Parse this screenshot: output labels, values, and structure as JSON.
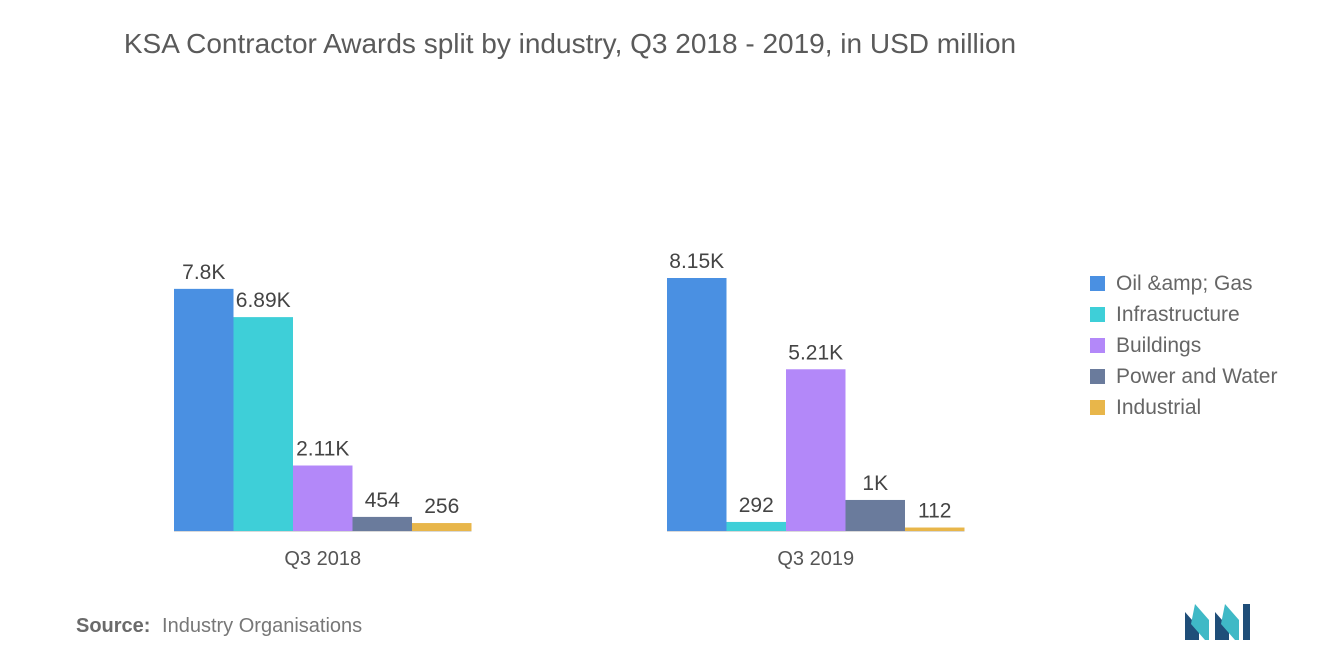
{
  "chart_data": {
    "type": "bar",
    "title": "KSA Contractor Awards split by industry, Q3 2018 - 2019, in USD million",
    "xlabel": "",
    "ylabel": "",
    "ylim": [
      0,
      8150
    ],
    "grid": false,
    "legend_position": "right",
    "categories": [
      "Q3 2018",
      "Q3 2019"
    ],
    "series": [
      {
        "name": "Oil &amp; Gas",
        "values": [
          7800,
          8150
        ],
        "labels": [
          "7.8K",
          "8.15K"
        ],
        "color": "#4a90e2"
      },
      {
        "name": "Infrastructure",
        "values": [
          6890,
          292
        ],
        "labels": [
          "6.89K",
          "292"
        ],
        "color": "#3ecfd8"
      },
      {
        "name": "Buildings",
        "values": [
          2110,
          5210
        ],
        "labels": [
          "2.11K",
          "5.21K"
        ],
        "color": "#b388f9"
      },
      {
        "name": "Power and Water",
        "values": [
          454,
          1000
        ],
        "labels": [
          "454",
          "1K"
        ],
        "color": "#6a7b9c"
      },
      {
        "name": "Industrial",
        "values": [
          256,
          112
        ],
        "labels": [
          "256",
          "112"
        ],
        "color": "#e8b64a"
      }
    ]
  },
  "source": {
    "label": "Source:",
    "text": "Industry Organisations"
  },
  "brand": {
    "logo_color_dark": "#1f4e79",
    "logo_color_light": "#3fb9c6"
  }
}
